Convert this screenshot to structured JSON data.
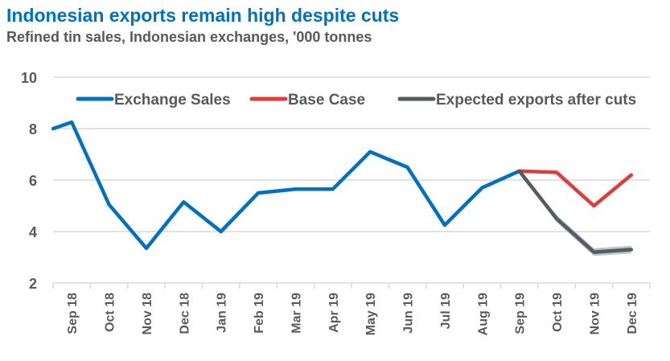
{
  "chart_data": {
    "type": "line",
    "title": "Indonesian exports remain high despite cuts",
    "subtitle": "Refined tin sales, Indonesian exchanges, '000 tonnes",
    "xlabel": "",
    "ylabel": "",
    "ylim": [
      2,
      10
    ],
    "yticks": [
      2,
      4,
      6,
      8,
      10
    ],
    "grid": true,
    "legend_position": "top",
    "categories": [
      "Sep 18",
      "Oct 18",
      "Nov 18",
      "Dec 18",
      "Jan 19",
      "Feb 19",
      "Mar 19",
      "Apr 19",
      "May 19",
      "Jun 19",
      "Jul 19",
      "Aug 19",
      "Sep 19",
      "Oct 19",
      "Nov 19",
      "Dec 19"
    ],
    "leading_edge_value": 8.0,
    "series": [
      {
        "name": "Exchange Sales",
        "color": "#0070C0",
        "values": [
          8.25,
          5.05,
          3.35,
          5.15,
          4.0,
          5.5,
          5.65,
          5.65,
          7.1,
          6.5,
          4.25,
          5.7,
          6.35,
          null,
          null,
          null
        ]
      },
      {
        "name": "Base Case",
        "color": "#E03C3C",
        "values": [
          null,
          null,
          null,
          null,
          null,
          null,
          null,
          null,
          null,
          null,
          null,
          null,
          6.35,
          6.3,
          5.0,
          6.2
        ]
      },
      {
        "name": "Expected exports after cuts",
        "color": "#555B62",
        "band_color": "#BFC4C8",
        "band": 0.15,
        "values": [
          null,
          null,
          null,
          null,
          null,
          null,
          null,
          null,
          null,
          null,
          null,
          null,
          6.35,
          4.5,
          3.2,
          3.3
        ]
      }
    ]
  }
}
